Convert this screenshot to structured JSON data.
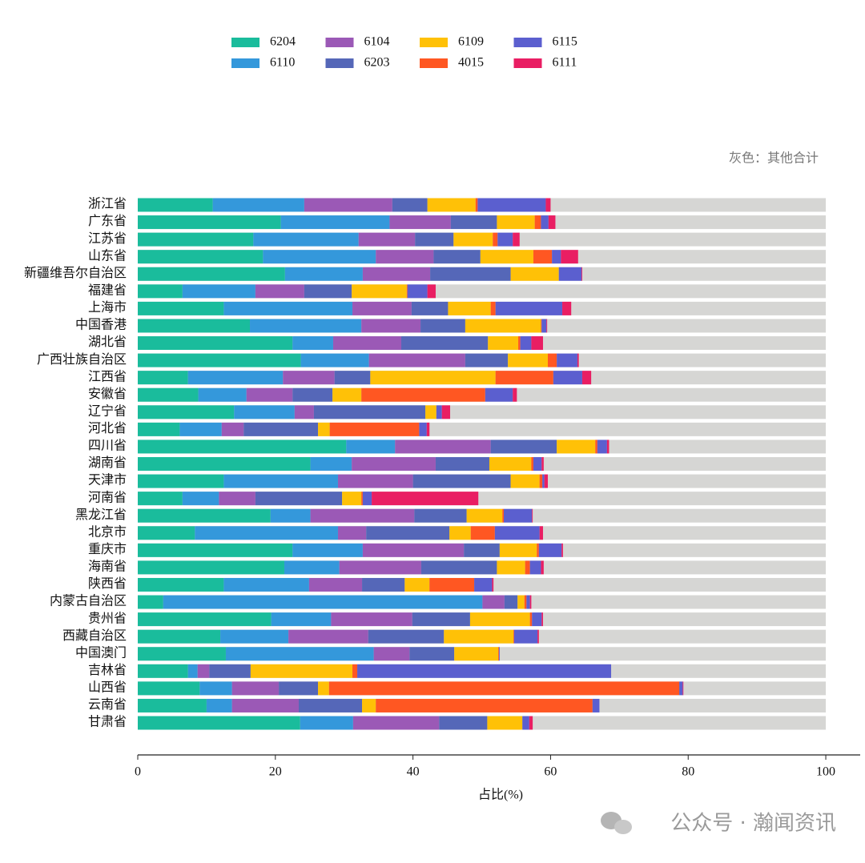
{
  "chart_data": {
    "type": "stacked_barh",
    "annotation": "灰色：其他合计",
    "x_label": "占比(%)",
    "watermark": "公众号 · 瀚闻资讯",
    "xlim": [
      0,
      105
    ],
    "xticks": [
      0,
      20,
      40,
      60,
      80,
      100
    ],
    "categories": [
      "浙江省",
      "广东省",
      "江苏省",
      "山东省",
      "新疆维吾尔自治区",
      "福建省",
      "上海市",
      "中国香港",
      "湖北省",
      "广西壮族自治区",
      "江西省",
      "安徽省",
      "辽宁省",
      "河北省",
      "四川省",
      "湖南省",
      "天津市",
      "河南省",
      "黑龙江省",
      "北京市",
      "重庆市",
      "海南省",
      "陕西省",
      "内蒙古自治区",
      "贵州省",
      "西藏自治区",
      "中国澳门",
      "吉林省",
      "山西省",
      "云南省",
      "甘肃省"
    ],
    "remainder_color": "#d6d6d4",
    "series": [
      {
        "name": "6204",
        "color": "#1abc9c",
        "values": [
          10.9,
          20.8,
          16.8,
          18.2,
          21.4,
          6.5,
          12.5,
          16.3,
          22.5,
          23.7,
          7.3,
          8.8,
          14.0,
          6.1,
          30.3,
          25.1,
          12.5,
          6.5,
          19.3,
          8.3,
          22.5,
          21.3,
          12.5,
          3.7,
          19.4,
          12.0,
          12.8,
          7.3,
          9.0,
          10.0,
          23.6
        ]
      },
      {
        "name": "6110",
        "color": "#3498db",
        "values": [
          13.3,
          15.8,
          15.3,
          16.4,
          11.3,
          10.6,
          18.7,
          16.2,
          5.9,
          9.9,
          13.8,
          7.0,
          8.8,
          6.1,
          7.1,
          6.0,
          16.6,
          5.3,
          5.8,
          20.8,
          10.2,
          8.0,
          12.4,
          46.4,
          8.7,
          9.9,
          21.5,
          1.4,
          4.7,
          3.7,
          7.7
        ]
      },
      {
        "name": "6104",
        "color": "#9b59b6",
        "values": [
          12.8,
          8.9,
          8.2,
          8.4,
          9.8,
          7.1,
          8.6,
          8.6,
          9.9,
          14.0,
          7.5,
          6.7,
          2.8,
          3.2,
          13.9,
          12.2,
          10.9,
          5.3,
          15.1,
          4.1,
          14.7,
          11.9,
          7.7,
          3.2,
          11.8,
          11.6,
          5.2,
          1.7,
          6.8,
          9.7,
          12.5
        ]
      },
      {
        "name": "6203",
        "color": "#5567b8",
        "values": [
          5.1,
          6.7,
          5.6,
          6.8,
          11.7,
          6.9,
          5.3,
          6.5,
          12.6,
          6.2,
          5.2,
          5.8,
          16.2,
          10.8,
          9.6,
          7.8,
          14.2,
          12.6,
          7.6,
          12.1,
          5.2,
          11.0,
          6.2,
          1.9,
          8.4,
          11.0,
          6.5,
          6.0,
          5.7,
          9.2,
          7.0
        ]
      },
      {
        "name": "6109",
        "color": "#ffc107",
        "values": [
          7.0,
          5.5,
          5.7,
          7.7,
          7.0,
          8.0,
          6.2,
          11.0,
          4.4,
          5.8,
          18.2,
          4.2,
          1.6,
          1.7,
          5.6,
          6.1,
          4.2,
          2.8,
          5.2,
          3.1,
          5.4,
          4.1,
          3.6,
          1.0,
          8.7,
          10.1,
          6.4,
          14.8,
          1.6,
          2.0,
          5.1
        ]
      },
      {
        "name": "4015",
        "color": "#ff5722",
        "values": [
          0.3,
          0.9,
          0.7,
          2.7,
          0,
          0.1,
          0.7,
          0.1,
          0.3,
          1.3,
          8.4,
          18.0,
          0,
          13.0,
          0.3,
          0.3,
          0.4,
          0.2,
          0.2,
          3.5,
          0.3,
          0.7,
          6.5,
          0.3,
          0.3,
          0.1,
          0.1,
          0.7,
          50.9,
          31.5,
          0
        ]
      },
      {
        "name": "6115",
        "color": "#5b5fcf",
        "values": [
          9.9,
          1.1,
          2.2,
          1.3,
          3.3,
          2.9,
          9.7,
          0.7,
          1.6,
          3.0,
          4.2,
          4.0,
          0.8,
          1.1,
          1.4,
          1.2,
          0.3,
          1.3,
          4.1,
          6.5,
          3.3,
          1.6,
          2.6,
          0.5,
          1.4,
          3.4,
          0.1,
          36.9,
          0.5,
          1.0,
          1.0
        ]
      },
      {
        "name": "6111",
        "color": "#e91e63",
        "values": [
          0.7,
          1.0,
          1.0,
          2.5,
          0.1,
          1.2,
          1.3,
          0.1,
          1.7,
          0.2,
          1.3,
          0.6,
          1.2,
          0.4,
          0.3,
          0.3,
          0.5,
          15.5,
          0.1,
          0.5,
          0.2,
          0.4,
          0.2,
          0.2,
          0.2,
          0.2,
          0,
          0,
          0.1,
          0,
          0.5
        ]
      }
    ]
  }
}
